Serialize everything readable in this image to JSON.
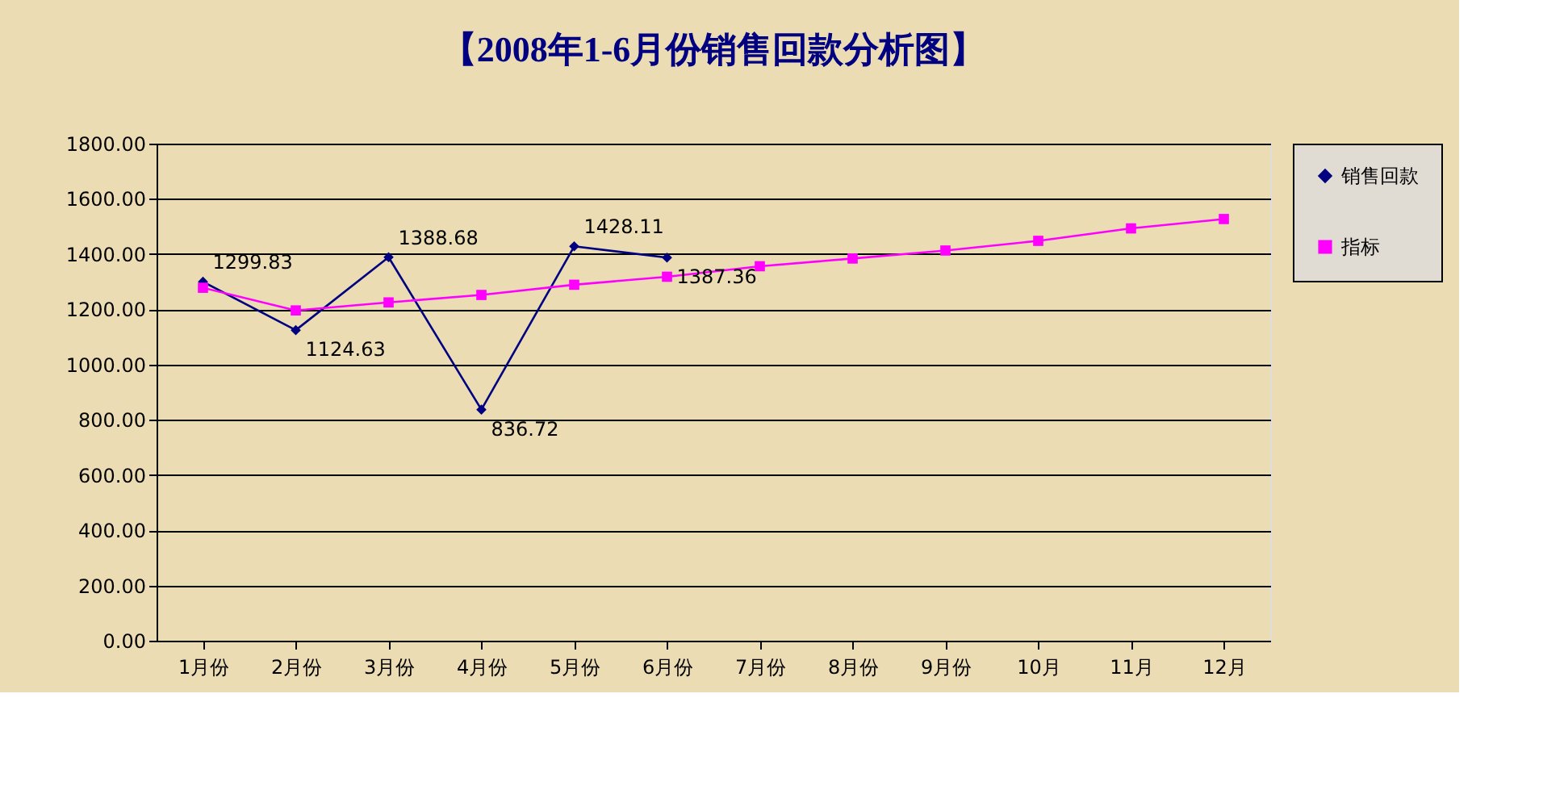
{
  "chart_data": {
    "type": "line",
    "title": "【2008年1-6月份销售回款分析图】",
    "categories": [
      "1月份",
      "2月份",
      "3月份",
      "4月份",
      "5月份",
      "6月份",
      "7月份",
      "8月份",
      "9月份",
      "10月",
      "11月",
      "12月"
    ],
    "series": [
      {
        "name": "销售回款",
        "color": "#000080",
        "marker": "diamond",
        "values": [
          1299.83,
          1124.63,
          1388.68,
          836.72,
          1428.11,
          1387.36,
          null,
          null,
          null,
          null,
          null,
          null
        ],
        "value_labels": [
          "1299.83",
          "1124.63",
          "1388.68",
          "836.72",
          "1428.11",
          "1387.36",
          null,
          null,
          null,
          null,
          null,
          null
        ]
      },
      {
        "name": "指标",
        "color": "#ff00ff",
        "marker": "square",
        "values": [
          1278,
          1196,
          1225,
          1252,
          1289,
          1318,
          1356,
          1384,
          1413,
          1448,
          1493,
          1527
        ]
      }
    ],
    "ylim": [
      0,
      1800
    ],
    "yticks": [
      {
        "value": 0,
        "label": "0.00"
      },
      {
        "value": 200,
        "label": "200.00"
      },
      {
        "value": 400,
        "label": "400.00"
      },
      {
        "value": 600,
        "label": "600.00"
      },
      {
        "value": 800,
        "label": "800.00"
      },
      {
        "value": 1000,
        "label": "1000.00"
      },
      {
        "value": 1200,
        "label": "1200.00"
      },
      {
        "value": 1400,
        "label": "1400.00"
      },
      {
        "value": 1600,
        "label": "1600.00"
      },
      {
        "value": 1800,
        "label": "1800.00"
      }
    ],
    "grid": "y",
    "legend": "right",
    "line_style": "solid"
  }
}
